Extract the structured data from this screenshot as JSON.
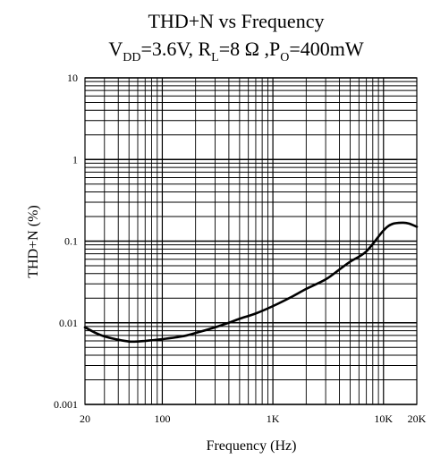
{
  "chart_data": {
    "type": "line",
    "title": "THD+N vs Frequency",
    "subtitle": {
      "vdd_prefix": "V",
      "vdd_sub": "DD",
      "vdd_value": "=3.6V, R",
      "rl_sub": "L",
      "rl_value": "=8 Ω ,P",
      "po_sub": "O",
      "po_value": "=400mW"
    },
    "xlabel": "Frequency (Hz)",
    "ylabel": "THD+N (%)",
    "xscale": "log",
    "yscale": "log",
    "xlim": [
      20,
      20000
    ],
    "ylim": [
      0.001,
      10
    ],
    "grid": true,
    "x_tick_labels": [
      {
        "value": 20,
        "label": "20"
      },
      {
        "value": 100,
        "label": "100"
      },
      {
        "value": 1000,
        "label": "1K"
      },
      {
        "value": 10000,
        "label": "10K"
      },
      {
        "value": 20000,
        "label": "20K"
      }
    ],
    "y_tick_labels": [
      {
        "value": 10,
        "label": "10"
      },
      {
        "value": 1,
        "label": "1"
      },
      {
        "value": 0.1,
        "label": "0.1"
      },
      {
        "value": 0.01,
        "label": "0.01"
      },
      {
        "value": 0.001,
        "label": "0.001"
      }
    ],
    "series": [
      {
        "x": [
          20,
          25,
          30,
          40,
          50,
          60,
          70,
          80,
          100,
          150,
          200,
          300,
          400,
          500,
          700,
          1000,
          1500,
          2000,
          3000,
          4000,
          5000,
          7000,
          10000,
          12000,
          15000,
          17000,
          20000
        ],
        "y": [
          0.0088,
          0.0075,
          0.0068,
          0.0062,
          0.0059,
          0.0059,
          0.006,
          0.0061,
          0.0063,
          0.0068,
          0.0075,
          0.0088,
          0.01,
          0.0112,
          0.013,
          0.016,
          0.021,
          0.026,
          0.034,
          0.045,
          0.056,
          0.075,
          0.135,
          0.162,
          0.168,
          0.164,
          0.15
        ]
      }
    ]
  }
}
